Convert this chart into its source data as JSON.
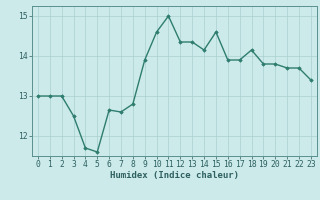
{
  "x": [
    0,
    1,
    2,
    3,
    4,
    5,
    6,
    7,
    8,
    9,
    10,
    11,
    12,
    13,
    14,
    15,
    16,
    17,
    18,
    19,
    20,
    21,
    22,
    23
  ],
  "y": [
    13.0,
    13.0,
    13.0,
    12.5,
    11.7,
    11.6,
    12.65,
    12.6,
    12.8,
    13.9,
    14.6,
    15.0,
    14.35,
    14.35,
    14.15,
    14.6,
    13.9,
    13.9,
    14.15,
    13.8,
    13.8,
    13.7,
    13.7,
    13.4
  ],
  "line_color": "#2e7d6e",
  "marker": "D",
  "marker_size": 1.8,
  "bg_color": "#cceaea",
  "grid_color": "#aacfcf",
  "xlabel": "Humidex (Indice chaleur)",
  "ylim": [
    11.5,
    15.25
  ],
  "xlim": [
    -0.5,
    23.5
  ],
  "yticks": [
    12,
    13,
    14,
    15
  ],
  "xticks": [
    0,
    1,
    2,
    3,
    4,
    5,
    6,
    7,
    8,
    9,
    10,
    11,
    12,
    13,
    14,
    15,
    16,
    17,
    18,
    19,
    20,
    21,
    22,
    23
  ],
  "tick_color": "#2e6060",
  "label_fontsize": 6.5,
  "tick_fontsize": 5.8,
  "line_width": 1.0,
  "spine_color": "#5a9090"
}
